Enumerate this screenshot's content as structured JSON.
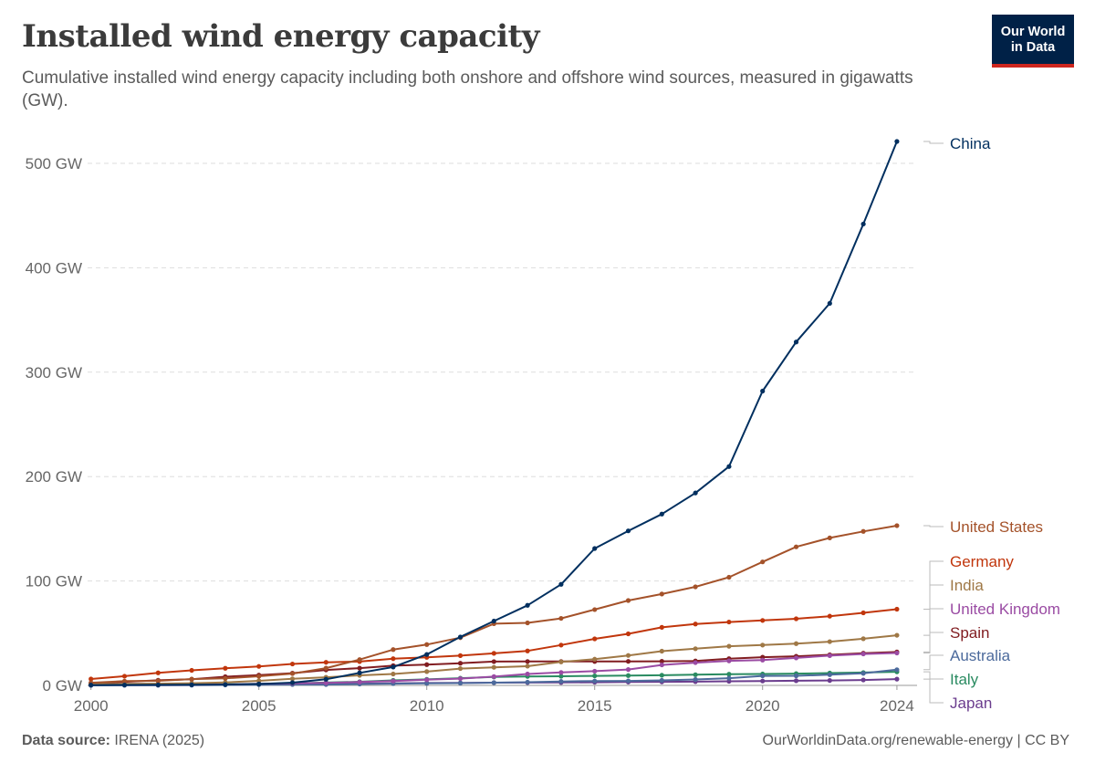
{
  "header": {
    "title": "Installed wind energy capacity",
    "subtitle": "Cumulative installed wind energy capacity including both onshore and offshore wind sources, measured in gigawatts (GW).",
    "logo_line1": "Our World",
    "logo_line2": "in Data"
  },
  "footer": {
    "source_label": "Data source:",
    "source_value": "IRENA (2025)",
    "url": "OurWorldinData.org/renewable-energy | CC BY"
  },
  "chart_data": {
    "type": "line",
    "title": "Installed wind energy capacity",
    "ylabel": "",
    "xlabel": "",
    "ylim": [
      0,
      520
    ],
    "y_ticks": [
      0,
      100,
      200,
      300,
      400,
      500
    ],
    "y_tick_labels": [
      "0 GW",
      "100 GW",
      "200 GW",
      "300 GW",
      "400 GW",
      "500 GW"
    ],
    "x_ticks": [
      2000,
      2005,
      2010,
      2015,
      2020,
      2024
    ],
    "x_tick_labels": [
      "2000",
      "2005",
      "2010",
      "2015",
      "2020",
      "2024"
    ],
    "grid": "horizontal dashed",
    "legend": "right, line-end labels",
    "x": [
      2000,
      2001,
      2002,
      2003,
      2004,
      2005,
      2006,
      2007,
      2008,
      2009,
      2010,
      2011,
      2012,
      2013,
      2014,
      2015,
      2016,
      2017,
      2018,
      2019,
      2020,
      2021,
      2022,
      2023,
      2024
    ],
    "series": [
      {
        "name": "China",
        "color": "#002f5f",
        "values": [
          0.3,
          0.4,
          0.5,
          0.6,
          0.8,
          1.3,
          2.6,
          5.9,
          12.0,
          17.6,
          29.6,
          46.4,
          61.6,
          76.7,
          96.8,
          131.1,
          148.0,
          164.1,
          184.3,
          209.6,
          281.9,
          328.9,
          365.9,
          441.9,
          521.0
        ]
      },
      {
        "name": "United States",
        "color": "#a4522a",
        "values": [
          2.5,
          4.1,
          4.4,
          6.0,
          6.7,
          8.7,
          11.3,
          16.5,
          24.7,
          34.3,
          39.1,
          45.7,
          59.1,
          59.9,
          64.2,
          72.6,
          81.3,
          87.5,
          94.4,
          103.6,
          118.3,
          132.7,
          141.3,
          147.5,
          153.0
        ]
      },
      {
        "name": "Germany",
        "color": "#c1360c",
        "values": [
          6.1,
          8.8,
          12.0,
          14.4,
          16.4,
          18.2,
          20.5,
          22.1,
          22.8,
          25.6,
          26.9,
          28.5,
          30.7,
          33.0,
          38.6,
          44.6,
          49.4,
          55.6,
          58.8,
          60.7,
          62.2,
          63.8,
          66.3,
          69.5,
          73.0
        ]
      },
      {
        "name": "India",
        "color": "#9f7846",
        "values": [
          1.2,
          1.5,
          1.7,
          2.1,
          2.9,
          4.4,
          6.3,
          7.8,
          9.6,
          10.9,
          13.2,
          16.1,
          17.3,
          18.4,
          22.5,
          25.1,
          28.7,
          32.8,
          35.1,
          37.5,
          38.6,
          40.0,
          41.9,
          44.7,
          48.0
        ]
      },
      {
        "name": "United Kingdom",
        "color": "#9a4ba3",
        "values": [
          0.4,
          0.5,
          0.5,
          0.7,
          0.9,
          1.6,
          2.0,
          2.4,
          3.2,
          4.2,
          5.4,
          6.5,
          8.4,
          10.9,
          12.4,
          13.6,
          15.2,
          19.6,
          21.8,
          23.5,
          24.2,
          26.3,
          28.5,
          30.1,
          31.0
        ]
      },
      {
        "name": "Spain",
        "color": "#811d21",
        "values": [
          2.2,
          3.4,
          4.9,
          5.9,
          8.3,
          9.9,
          11.7,
          14.8,
          16.5,
          18.9,
          19.9,
          21.2,
          22.8,
          22.9,
          22.9,
          22.9,
          23.0,
          23.1,
          23.4,
          25.6,
          27.0,
          27.9,
          29.3,
          30.8,
          32.0
        ]
      },
      {
        "name": "Australia",
        "color": "#4c6a9c",
        "values": [
          0.03,
          0.07,
          0.1,
          0.2,
          0.4,
          0.7,
          0.8,
          0.8,
          1.3,
          1.7,
          1.9,
          2.2,
          2.6,
          3.1,
          3.8,
          4.2,
          4.3,
          4.8,
          5.7,
          6.9,
          9.1,
          9.2,
          10.2,
          11.5,
          15.0
        ]
      },
      {
        "name": "Italy",
        "color": "#2a8b61",
        "values": [
          0.4,
          0.7,
          0.8,
          0.9,
          1.1,
          1.6,
          1.9,
          2.7,
          3.5,
          4.8,
          5.8,
          6.9,
          8.1,
          8.6,
          8.7,
          9.1,
          9.4,
          9.7,
          10.2,
          10.7,
          10.9,
          11.3,
          11.8,
          12.3,
          13.0
        ]
      },
      {
        "name": "Japan",
        "color": "#6b3d8e",
        "values": [
          0.1,
          0.3,
          0.4,
          0.5,
          0.8,
          1.0,
          1.3,
          1.5,
          1.7,
          2.0,
          2.3,
          2.4,
          2.6,
          2.7,
          2.8,
          3.0,
          3.2,
          3.4,
          3.6,
          3.9,
          4.2,
          4.5,
          4.7,
          5.2,
          6.0
        ]
      }
    ]
  }
}
